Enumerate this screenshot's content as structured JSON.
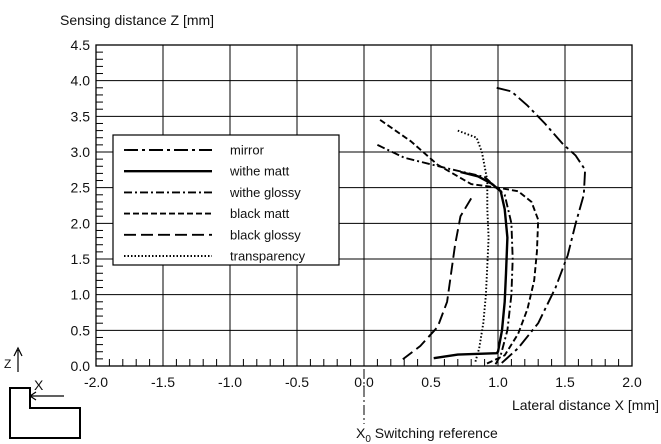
{
  "chart_data": {
    "type": "line",
    "ylabel": "Sensing distance Z [mm]",
    "xlabel": "Lateral distance X [mm]",
    "reference_label_main": "X",
    "reference_label_sub": "0",
    "reference_label_rest": " Switching reference",
    "reference_x": 0.0,
    "xlim": [
      -2.0,
      2.0
    ],
    "ylim": [
      0.0,
      4.5
    ],
    "x_ticks": [
      "-2.0",
      "-1.5",
      "-1.0",
      "-0.5",
      "0.0",
      "0.5",
      "1.0",
      "1.5",
      "2.0"
    ],
    "y_ticks": [
      "0.0",
      "0.5",
      "1.0",
      "1.5",
      "2.0",
      "2.5",
      "3.0",
      "3.5",
      "4.0",
      "4.5"
    ],
    "grid": true,
    "legend_position": "left",
    "icon_z_label": "Z",
    "icon_x_label": "X",
    "series": [
      {
        "name": "mirror",
        "dash": "dashdot-long",
        "points": [
          [
            0.99,
            3.9
          ],
          [
            1.1,
            3.85
          ],
          [
            1.22,
            3.65
          ],
          [
            1.35,
            3.4
          ],
          [
            1.48,
            3.12
          ],
          [
            1.58,
            2.95
          ],
          [
            1.65,
            2.75
          ],
          [
            1.64,
            2.4
          ],
          [
            1.58,
            2.0
          ],
          [
            1.52,
            1.55
          ],
          [
            1.43,
            1.1
          ],
          [
            1.3,
            0.6
          ],
          [
            1.15,
            0.25
          ],
          [
            1.02,
            0.03
          ]
        ]
      },
      {
        "name": "withe matt",
        "dash": "solid",
        "points": [
          [
            0.72,
            2.72
          ],
          [
            0.85,
            2.66
          ],
          [
            0.95,
            2.56
          ],
          [
            1.02,
            2.45
          ],
          [
            1.05,
            2.2
          ],
          [
            1.07,
            1.8
          ],
          [
            1.06,
            1.3
          ],
          [
            1.05,
            0.9
          ],
          [
            1.03,
            0.5
          ],
          [
            1.0,
            0.2
          ],
          [
            0.99,
            0.18
          ],
          [
            0.7,
            0.16
          ],
          [
            0.52,
            0.11
          ]
        ]
      },
      {
        "name": "withe glossy",
        "dash": "dashdot",
        "points": [
          [
            0.1,
            3.1
          ],
          [
            0.3,
            2.92
          ],
          [
            0.6,
            2.78
          ],
          [
            0.9,
            2.65
          ],
          [
            1.05,
            2.4
          ],
          [
            1.1,
            2.0
          ],
          [
            1.11,
            1.5
          ],
          [
            1.1,
            1.0
          ],
          [
            1.07,
            0.5
          ],
          [
            1.02,
            0.15
          ],
          [
            0.98,
            0.02
          ]
        ]
      },
      {
        "name": "black matt",
        "dash": "dash",
        "points": [
          [
            0.12,
            3.45
          ],
          [
            0.35,
            3.15
          ],
          [
            0.55,
            2.82
          ],
          [
            0.8,
            2.55
          ],
          [
            1.0,
            2.5
          ],
          [
            1.15,
            2.45
          ],
          [
            1.25,
            2.3
          ],
          [
            1.3,
            2.05
          ],
          [
            1.29,
            1.6
          ],
          [
            1.27,
            1.2
          ],
          [
            1.22,
            0.8
          ],
          [
            1.15,
            0.45
          ],
          [
            1.05,
            0.15
          ],
          [
            0.9,
            0.02
          ]
        ]
      },
      {
        "name": "black glossy",
        "dash": "longdash",
        "points": [
          [
            0.8,
            2.35
          ],
          [
            0.72,
            2.1
          ],
          [
            0.68,
            1.7
          ],
          [
            0.65,
            1.3
          ],
          [
            0.62,
            0.9
          ],
          [
            0.55,
            0.55
          ],
          [
            0.42,
            0.28
          ],
          [
            0.28,
            0.08
          ]
        ]
      },
      {
        "name": "transparency",
        "dash": "dot",
        "points": [
          [
            0.7,
            3.3
          ],
          [
            0.84,
            3.2
          ],
          [
            0.88,
            3.0
          ],
          [
            0.9,
            2.8
          ],
          [
            0.92,
            2.6
          ],
          [
            0.92,
            2.2
          ],
          [
            0.93,
            1.8
          ],
          [
            0.92,
            1.4
          ],
          [
            0.91,
            1.0
          ],
          [
            0.89,
            0.6
          ],
          [
            0.86,
            0.25
          ],
          [
            0.83,
            0.05
          ]
        ]
      }
    ]
  }
}
